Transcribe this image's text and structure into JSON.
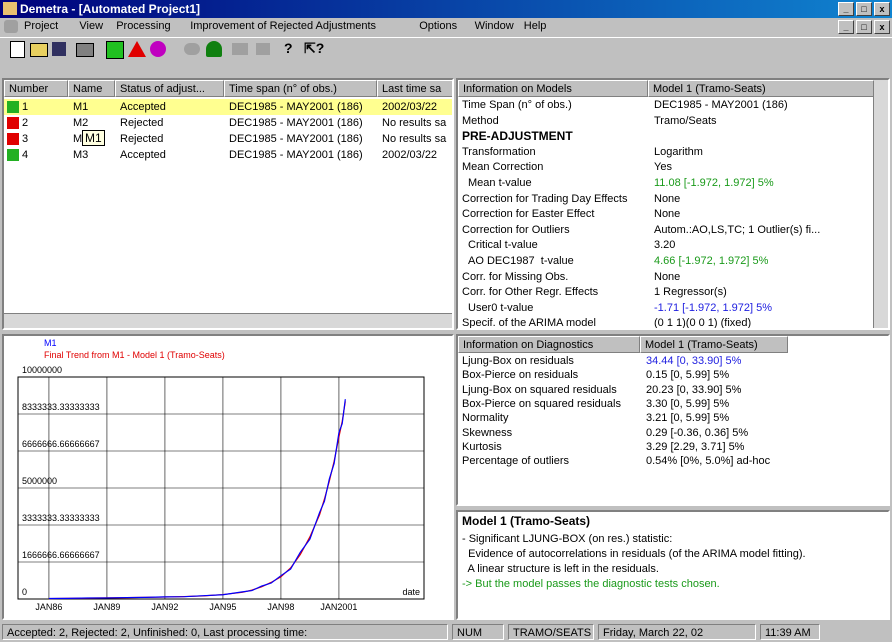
{
  "window": {
    "title": "Demetra - [Automated Project1]"
  },
  "menu": [
    "Project",
    "View",
    "Processing",
    "Improvement of Rejected Adjustments",
    "Options",
    "Window",
    "Help"
  ],
  "table": {
    "headers": [
      "Number",
      "Name",
      "Status of adjust...",
      "Time span (n° of obs.)",
      "Last time sa"
    ],
    "rows": [
      {
        "color": "#22b022",
        "cells": [
          "1",
          "M1",
          "Accepted",
          "DEC1985 - MAY2001 (186)",
          "2002/03/22"
        ]
      },
      {
        "color": "#e00000",
        "cells": [
          "2",
          "M2",
          "Rejected",
          "DEC1985 - MAY2001 (186)",
          "No results sa"
        ]
      },
      {
        "color": "#e00000",
        "cells": [
          "3",
          "M",
          "Rejected",
          "DEC1985 - MAY2001 (186)",
          "No results sa"
        ]
      },
      {
        "color": "#22b022",
        "cells": [
          "4",
          "M3",
          "Accepted",
          "DEC1985 - MAY2001 (186)",
          "2002/03/22"
        ]
      }
    ],
    "tooltip": "M1"
  },
  "models": {
    "headers": [
      "Information on Models",
      "Model 1 (Tramo-Seats)"
    ],
    "rows": [
      {
        "label": "Time Span (n° of obs.)",
        "value": "DEC1985 - MAY2001 (186)"
      },
      {
        "label": "Method",
        "value": "Tramo/Seats"
      },
      {
        "label": "PRE-ADJUSTMENT",
        "bold": true
      },
      {
        "label": "Transformation",
        "value": "Logarithm"
      },
      {
        "label": "Mean Correction",
        "value": "Yes"
      },
      {
        "label": "Mean t-value",
        "value": "11.08 [-1.972, 1.972] 5%",
        "indent": true,
        "color": "#1a9a1a"
      },
      {
        "label": "Correction for Trading Day Effects",
        "value": "None"
      },
      {
        "label": "Correction for Easter Effect",
        "value": "None"
      },
      {
        "label": "Correction for Outliers",
        "value": "Autom.:AO,LS,TC; 1 Outlier(s) fi..."
      },
      {
        "label": "Critical t-value",
        "value": "3.20",
        "indent": true
      },
      {
        "label": "AO DEC1987  t-value",
        "value": "4.66 [-1.972, 1.972] 5%",
        "indent": true,
        "color": "#1a9a1a"
      },
      {
        "label": "Corr. for Missing Obs.",
        "value": "None"
      },
      {
        "label": "Corr. for Other Regr. Effects",
        "value": "1 Regressor(s)"
      },
      {
        "label": "User0 t-value",
        "value": "-1.71 [-1.972, 1.972] 5%",
        "indent": true,
        "color": "#2020e0"
      },
      {
        "label": "Specif. of the ARIMA model",
        "value": "(0 1 1)(0 0 1) (fixed)"
      }
    ]
  },
  "diagnostics": {
    "headers": [
      "Information on Diagnostics",
      "Model 1 (Tramo-Seats)"
    ],
    "rows": [
      {
        "label": "Ljung-Box on residuals",
        "value": "34.44 [0, 33.90] 5%",
        "color": "#2020e0"
      },
      {
        "label": "Box-Pierce on residuals",
        "value": "0.15 [0, 5.99] 5%"
      },
      {
        "label": "Ljung-Box on squared residuals",
        "value": "20.23 [0, 33.90] 5%"
      },
      {
        "label": "Box-Pierce on squared residuals",
        "value": "3.30 [0, 5.99] 5%"
      },
      {
        "label": "Normality",
        "value": "3.21 [0, 5.99] 5%"
      },
      {
        "label": "Skewness",
        "value": "0.29 [-0.36, 0.36] 5%"
      },
      {
        "label": "Kurtosis",
        "value": "3.29 [2.29, 3.71] 5%"
      },
      {
        "label": "Percentage of outliers",
        "value": "0.54% [0%, 5.0%] ad-hoc"
      }
    ]
  },
  "message": {
    "title": "Model 1 (Tramo-Seats)",
    "lines": [
      {
        "text": "- Significant LJUNG-BOX (on res.) statistic:"
      },
      {
        "text": "  Evidence of autocorrelations in residuals (of the ARIMA model fitting)."
      },
      {
        "text": "  A linear structure is left in the residuals."
      },
      {
        "text": "-> But the model passes the diagnostic tests chosen.",
        "color": "#1a9a1a"
      }
    ]
  },
  "status": [
    "Accepted: 2, Rejected: 2, Unfinished: 0, Last processing time:",
    "NUM",
    "TRAMO/SEATS",
    "Friday, March 22, 02",
    "11:39 AM"
  ],
  "chart_data": {
    "type": "line",
    "xlabel": "date",
    "x": [
      1986,
      1987,
      1988,
      1989,
      1990,
      1991,
      1992,
      1993,
      1994,
      1995,
      1996,
      1996.5,
      1997,
      1997.5,
      1998,
      1998.5,
      1999,
      1999.5,
      2000,
      2000.25,
      2000.5,
      2000.75,
      2001,
      2001.17,
      2001.33
    ],
    "series": [
      {
        "name": "M1",
        "color": "#0000ff",
        "values": [
          22000,
          28000,
          45000,
          48000,
          65000,
          72000,
          95000,
          105000,
          150000,
          190000,
          320000,
          380000,
          580000,
          720000,
          1050000,
          1350000,
          2100000,
          2700000,
          3900000,
          4400000,
          5400000,
          6100000,
          7500000,
          7900000,
          9000000
        ]
      },
      {
        "name": "Final Trend from M1 - Model 1 (Tramo-Seats)",
        "color": "#e00000",
        "values": [
          20000,
          30000,
          40000,
          50000,
          60000,
          75000,
          90000,
          110000,
          140000,
          200000,
          300000,
          400000,
          550000,
          750000,
          1000000,
          1400000,
          2000000,
          2800000,
          3800000,
          4500000,
          5300000,
          6200000,
          7300000,
          8000000,
          8900000
        ]
      }
    ],
    "xlim": [
      1984.4,
      2005.4
    ],
    "xticks": [
      {
        "value": 1986,
        "label": "JAN86"
      },
      {
        "value": 1989,
        "label": "JAN89"
      },
      {
        "value": 1992,
        "label": "JAN92"
      },
      {
        "value": 1995,
        "label": "JAN95"
      },
      {
        "value": 1998,
        "label": "JAN98"
      },
      {
        "value": 2001,
        "label": "JAN2001"
      }
    ],
    "ylim": [
      0,
      10000000
    ],
    "yticks": [
      0,
      1666666.66666667,
      3333333.33333333,
      5000000,
      6666666.66666667,
      8333333.33333333,
      10000000
    ],
    "grid": true
  }
}
